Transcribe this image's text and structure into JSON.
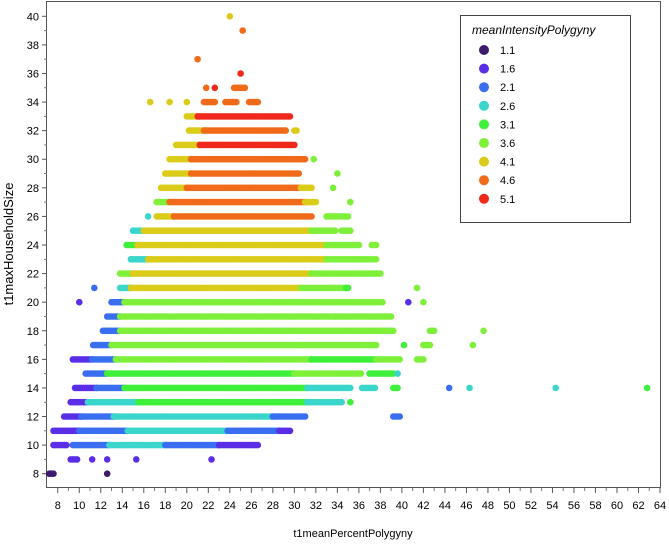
{
  "chart_data": {
    "type": "scatter",
    "title": "",
    "xlabel": "t1meanPercentPolygyny",
    "ylabel": "t1maxHouseholdSize",
    "xlim": [
      7,
      64
    ],
    "ylim": [
      7,
      41
    ],
    "x_ticks": [
      8,
      10,
      12,
      14,
      16,
      18,
      20,
      22,
      24,
      26,
      28,
      30,
      32,
      34,
      36,
      38,
      40,
      42,
      44,
      46,
      48,
      50,
      52,
      54,
      56,
      58,
      60,
      62,
      64
    ],
    "y_ticks": [
      8,
      10,
      12,
      14,
      16,
      18,
      20,
      22,
      24,
      26,
      28,
      30,
      32,
      34,
      36,
      38,
      40
    ],
    "grid": false,
    "legend": {
      "title": "meanIntensityPolygyny",
      "placement": "top-right",
      "entries": [
        {
          "label": "1.1",
          "color": "#3d1a6e"
        },
        {
          "label": "1.6",
          "color": "#5a2ee6"
        },
        {
          "label": "2.1",
          "color": "#3a6ef0"
        },
        {
          "label": "2.6",
          "color": "#3ad6cc"
        },
        {
          "label": "3.1",
          "color": "#3ef03a"
        },
        {
          "label": "3.6",
          "color": "#7ef03a"
        },
        {
          "label": "4.1",
          "color": "#dccc1a"
        },
        {
          "label": "4.6",
          "color": "#f06a1a"
        },
        {
          "label": "5.1",
          "color": "#f02a1a"
        }
      ]
    },
    "rows": [
      {
        "y": 8,
        "ranges": [
          [
            7.2,
            7.6,
            0
          ],
          [
            12.6,
            12.6,
            0
          ]
        ]
      },
      {
        "y": 9,
        "ranges": [
          [
            9.2,
            9.8,
            1
          ],
          [
            11.2,
            11.2,
            1
          ],
          [
            12.6,
            12.6,
            1
          ],
          [
            15.3,
            15.3,
            1
          ],
          [
            22.3,
            22.3,
            1
          ]
        ]
      },
      {
        "y": 10,
        "ranges": [
          [
            7.6,
            8.8,
            1
          ],
          [
            9.4,
            12.8,
            2
          ],
          [
            12.8,
            18.0,
            3
          ],
          [
            18.0,
            23.0,
            2
          ],
          [
            23.0,
            26.6,
            1
          ]
        ]
      },
      {
        "y": 11,
        "ranges": [
          [
            7.6,
            10.0,
            1
          ],
          [
            10.0,
            14.5,
            2
          ],
          [
            14.5,
            23.8,
            3
          ],
          [
            23.8,
            28.6,
            2
          ],
          [
            28.6,
            29.6,
            1
          ]
        ]
      },
      {
        "y": 12,
        "ranges": [
          [
            8.6,
            10.2,
            1
          ],
          [
            10.2,
            13.2,
            2
          ],
          [
            13.2,
            28.0,
            3
          ],
          [
            28.0,
            31.0,
            2
          ],
          [
            39.2,
            39.9,
            2
          ]
        ]
      },
      {
        "y": 13,
        "ranges": [
          [
            9.2,
            10.8,
            1
          ],
          [
            10.8,
            15.5,
            3
          ],
          [
            15.5,
            31.2,
            4
          ],
          [
            31.2,
            34.4,
            3
          ],
          [
            35.2,
            35.2,
            4
          ]
        ]
      },
      {
        "y": 14,
        "ranges": [
          [
            9.6,
            11.6,
            1
          ],
          [
            11.6,
            14.2,
            2
          ],
          [
            14.2,
            31.2,
            4
          ],
          [
            31.2,
            35.3,
            3
          ],
          [
            36.3,
            37.6,
            3
          ],
          [
            39.2,
            39.6,
            4
          ],
          [
            44.4,
            44.4,
            2
          ],
          [
            46.3,
            46.3,
            3
          ],
          [
            54.3,
            54.3,
            3
          ],
          [
            62.8,
            62.8,
            4
          ]
        ]
      },
      {
        "y": 15,
        "ranges": [
          [
            10.6,
            12.6,
            2
          ],
          [
            12.6,
            30.0,
            4
          ],
          [
            30.0,
            36.2,
            5
          ],
          [
            37.0,
            39.2,
            4
          ],
          [
            39.6,
            39.6,
            3
          ]
        ]
      },
      {
        "y": 16,
        "ranges": [
          [
            9.4,
            11.2,
            1
          ],
          [
            11.2,
            13.4,
            2
          ],
          [
            13.4,
            31.6,
            5
          ],
          [
            31.6,
            37.6,
            4
          ],
          [
            37.6,
            39.8,
            5
          ],
          [
            41.4,
            42.0,
            5
          ]
        ]
      },
      {
        "y": 17,
        "ranges": [
          [
            11.3,
            13.0,
            2
          ],
          [
            13.0,
            30.6,
            5
          ],
          [
            30.6,
            37.6,
            5
          ],
          [
            40.2,
            40.2,
            4
          ],
          [
            42.0,
            42.6,
            5
          ],
          [
            46.6,
            46.6,
            5
          ]
        ]
      },
      {
        "y": 18,
        "ranges": [
          [
            12.2,
            13.8,
            2
          ],
          [
            13.8,
            31.6,
            5
          ],
          [
            31.6,
            39.2,
            5
          ],
          [
            42.6,
            43.0,
            5
          ],
          [
            47.6,
            47.6,
            5
          ]
        ]
      },
      {
        "y": 19,
        "ranges": [
          [
            12.6,
            13.8,
            2
          ],
          [
            13.8,
            33.8,
            5
          ],
          [
            33.8,
            39.0,
            5
          ]
        ]
      },
      {
        "y": 20,
        "ranges": [
          [
            10.0,
            10.0,
            1
          ],
          [
            13.0,
            14.2,
            2
          ],
          [
            14.2,
            32.8,
            5
          ],
          [
            32.8,
            38.2,
            5
          ],
          [
            40.6,
            40.6,
            1
          ],
          [
            42.0,
            42.0,
            5
          ]
        ]
      },
      {
        "y": 21,
        "ranges": [
          [
            11.4,
            11.4,
            2
          ],
          [
            13.8,
            14.8,
            3
          ],
          [
            14.8,
            30.6,
            6
          ],
          [
            30.6,
            34.8,
            5
          ],
          [
            34.8,
            35.0,
            4
          ],
          [
            41.4,
            41.4,
            5
          ]
        ]
      },
      {
        "y": 22,
        "ranges": [
          [
            13.8,
            15.0,
            5
          ],
          [
            15.0,
            31.6,
            6
          ],
          [
            31.6,
            38.0,
            5
          ]
        ]
      },
      {
        "y": 23,
        "ranges": [
          [
            14.8,
            16.4,
            3
          ],
          [
            16.4,
            33.0,
            6
          ],
          [
            33.0,
            37.6,
            5
          ]
        ]
      },
      {
        "y": 24,
        "ranges": [
          [
            14.4,
            15.4,
            4
          ],
          [
            15.4,
            33.0,
            6
          ],
          [
            33.0,
            36.0,
            5
          ],
          [
            37.2,
            37.6,
            5
          ]
        ]
      },
      {
        "y": 25,
        "ranges": [
          [
            15.0,
            16.0,
            3
          ],
          [
            16.0,
            31.6,
            6
          ],
          [
            31.6,
            33.8,
            5
          ],
          [
            34.4,
            35.2,
            5
          ]
        ]
      },
      {
        "y": 26,
        "ranges": [
          [
            16.4,
            16.4,
            3
          ],
          [
            17.2,
            18.8,
            6
          ],
          [
            18.8,
            31.6,
            7
          ],
          [
            33.0,
            35.0,
            5
          ]
        ]
      },
      {
        "y": 27,
        "ranges": [
          [
            17.2,
            18.4,
            5
          ],
          [
            18.4,
            31.0,
            7
          ],
          [
            31.0,
            32.0,
            6
          ],
          [
            35.2,
            35.2,
            5
          ]
        ]
      },
      {
        "y": 28,
        "ranges": [
          [
            17.6,
            20.0,
            6
          ],
          [
            20.0,
            30.6,
            7
          ],
          [
            30.6,
            31.6,
            6
          ],
          [
            33.6,
            33.6,
            5
          ]
        ]
      },
      {
        "y": 29,
        "ranges": [
          [
            18.0,
            20.4,
            6
          ],
          [
            20.4,
            30.4,
            7
          ],
          [
            34.0,
            34.0,
            5
          ]
        ]
      },
      {
        "y": 30,
        "ranges": [
          [
            18.4,
            20.4,
            6
          ],
          [
            20.4,
            31.0,
            7
          ],
          [
            31.8,
            31.8,
            5
          ]
        ]
      },
      {
        "y": 31,
        "ranges": [
          [
            19.0,
            21.2,
            6
          ],
          [
            21.2,
            30.0,
            8
          ]
        ]
      },
      {
        "y": 32,
        "ranges": [
          [
            20.2,
            21.6,
            6
          ],
          [
            21.6,
            29.2,
            7
          ],
          [
            30.0,
            30.2,
            6
          ]
        ]
      },
      {
        "y": 33,
        "ranges": [
          [
            20.0,
            21.0,
            6
          ],
          [
            21.0,
            29.6,
            8
          ]
        ]
      },
      {
        "y": 34,
        "ranges": [
          [
            16.6,
            16.6,
            6
          ],
          [
            18.4,
            18.4,
            6
          ],
          [
            20.0,
            20.0,
            6
          ],
          [
            21.6,
            22.6,
            7
          ],
          [
            23.6,
            24.6,
            7
          ],
          [
            25.8,
            26.6,
            7
          ]
        ]
      },
      {
        "y": 35,
        "ranges": [
          [
            21.8,
            21.8,
            7
          ],
          [
            22.6,
            22.6,
            8
          ],
          [
            24.4,
            25.4,
            7
          ]
        ]
      },
      {
        "y": 36,
        "ranges": [
          [
            25.0,
            25.0,
            8
          ]
        ]
      },
      {
        "y": 37,
        "ranges": [
          [
            21.0,
            21.0,
            7
          ]
        ]
      },
      {
        "y": 39,
        "ranges": [
          [
            25.2,
            25.2,
            7
          ]
        ]
      },
      {
        "y": 40,
        "ranges": [
          [
            24.0,
            24.0,
            6
          ]
        ]
      }
    ]
  }
}
